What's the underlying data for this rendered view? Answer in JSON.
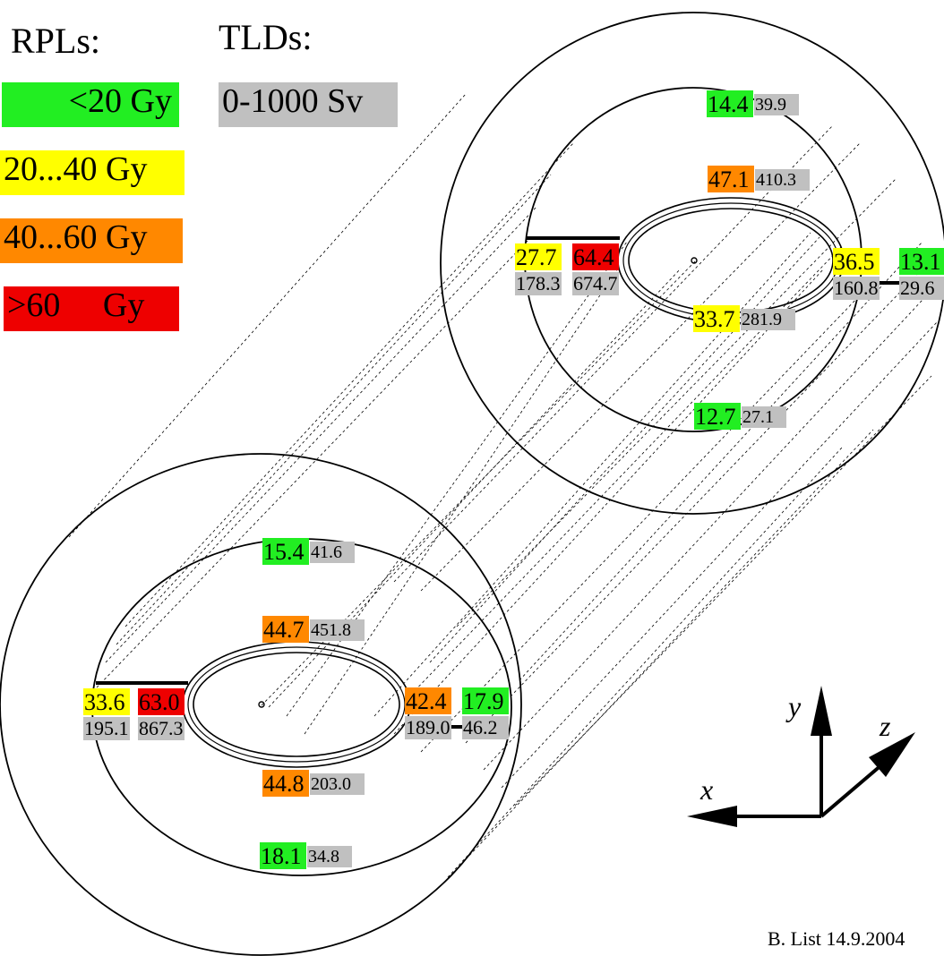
{
  "legend": {
    "rpl_title": "RPLs:",
    "tld_title": "TLDs:",
    "rpl_items": [
      {
        "label": "<20 Gy",
        "color": "#22ee22"
      },
      {
        "label": "20...40 Gy",
        "color": "#ffff00"
      },
      {
        "label": "40...60 Gy",
        "color": "#ff8800"
      },
      {
        "label": ">60     Gy",
        "color": "#ee0000"
      }
    ],
    "tld_items": [
      {
        "label": "0-1000 Sv",
        "color": "#c0c0c0"
      }
    ]
  },
  "colors": {
    "green": "#22ee22",
    "yellow": "#ffff00",
    "orange": "#ff8800",
    "red": "#ee0000",
    "grey": "#c0c0c0"
  },
  "upper_ring": {
    "measurements": [
      {
        "id": "top-outer",
        "rpl": "14.4",
        "rpl_color": "green",
        "tld": "39.9"
      },
      {
        "id": "top-inner",
        "rpl": "47.1",
        "rpl_color": "orange",
        "tld": "410.3"
      },
      {
        "id": "left-outer",
        "rpl": "27.7",
        "rpl_color": "yellow",
        "tld": "178.3"
      },
      {
        "id": "left-inner",
        "rpl": "64.4",
        "rpl_color": "red",
        "tld": "674.7"
      },
      {
        "id": "right-inner",
        "rpl": "36.5",
        "rpl_color": "yellow",
        "tld": "160.8"
      },
      {
        "id": "right-outer",
        "rpl": "13.1",
        "rpl_color": "green",
        "tld": "29.6"
      },
      {
        "id": "bottom-inner",
        "rpl": "33.7",
        "rpl_color": "yellow",
        "tld": "281.9"
      },
      {
        "id": "bottom-outer",
        "rpl": "12.7",
        "rpl_color": "green",
        "tld": "27.1"
      }
    ]
  },
  "lower_ring": {
    "measurements": [
      {
        "id": "top-outer",
        "rpl": "15.4",
        "rpl_color": "green",
        "tld": "41.6"
      },
      {
        "id": "top-inner",
        "rpl": "44.7",
        "rpl_color": "orange",
        "tld": "451.8"
      },
      {
        "id": "left-outer",
        "rpl": "33.6",
        "rpl_color": "yellow",
        "tld": "195.1"
      },
      {
        "id": "left-inner",
        "rpl": "63.0",
        "rpl_color": "red",
        "tld": "867.3"
      },
      {
        "id": "right-inner",
        "rpl": "42.4",
        "rpl_color": "orange",
        "tld": "189.0"
      },
      {
        "id": "right-outer",
        "rpl": "17.9",
        "rpl_color": "green",
        "tld": "46.2"
      },
      {
        "id": "bottom-inner",
        "rpl": "44.8",
        "rpl_color": "orange",
        "tld": "203.0"
      },
      {
        "id": "bottom-outer",
        "rpl": "18.1",
        "rpl_color": "green",
        "tld": "34.8"
      }
    ]
  },
  "axes": {
    "x_label": "x",
    "y_label": "y",
    "z_label": "z"
  },
  "credit": "B. List 14.9.2004"
}
